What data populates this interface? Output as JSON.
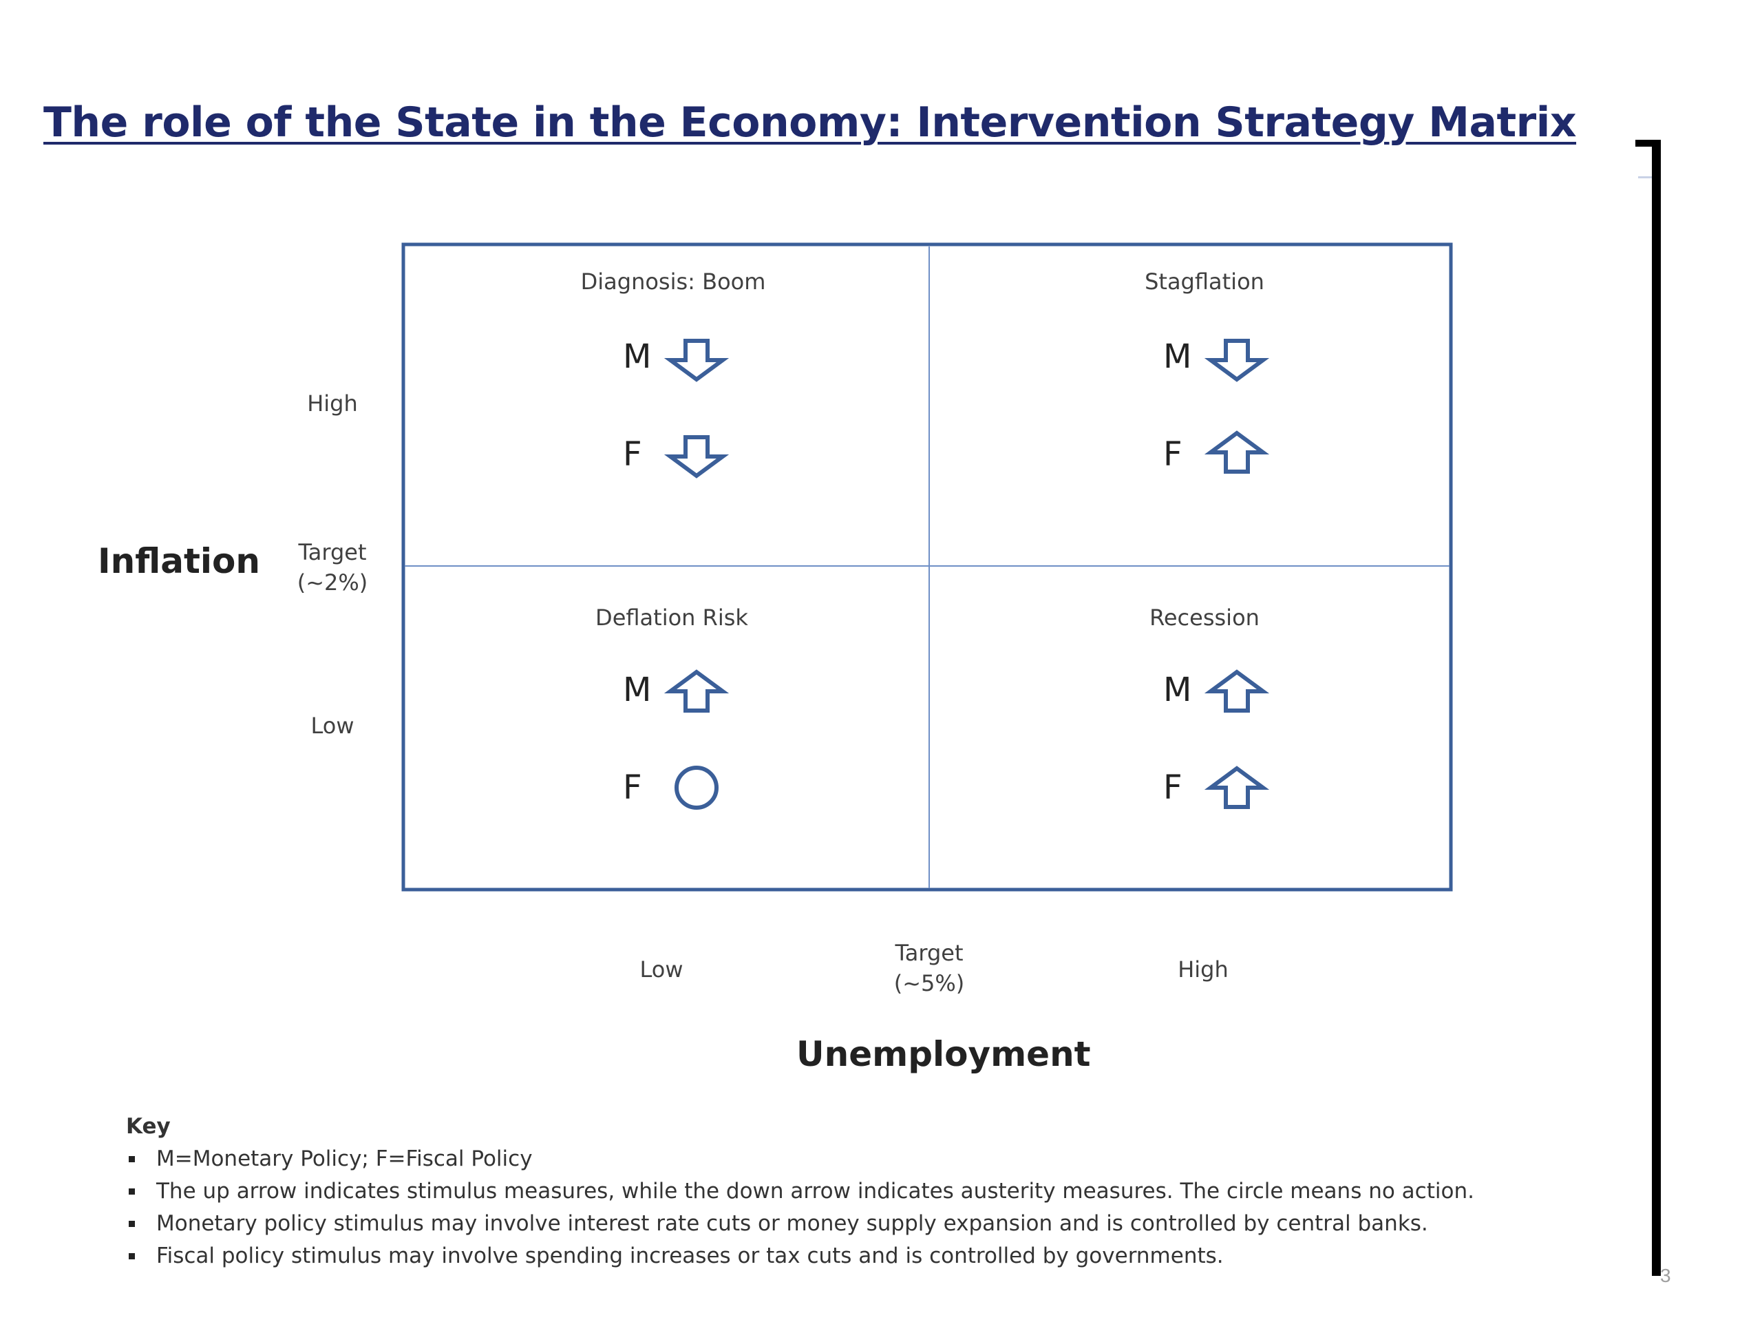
{
  "title": "The role of the State in the Economy: Intervention Strategy Matrix",
  "page_number": "3",
  "y_axis": {
    "label": "Inflation",
    "ticks": {
      "high": "High",
      "target_line1": "Target",
      "target_line2": "(~2%)",
      "low": "Low"
    }
  },
  "x_axis": {
    "label": "Unemployment",
    "ticks": {
      "low": "Low",
      "target_line1": "Target",
      "target_line2": "(~5%)",
      "high": "High"
    }
  },
  "quadrants": {
    "top_left": {
      "title": "Diagnosis: Boom",
      "monetary": "M",
      "fiscal": "F",
      "monetary_symbol": "down-arrow",
      "fiscal_symbol": "down-arrow"
    },
    "top_right": {
      "title": "Stagflation",
      "monetary": "M",
      "fiscal": "F",
      "monetary_symbol": "down-arrow",
      "fiscal_symbol": "up-arrow"
    },
    "bottom_left": {
      "title": "Deflation Risk",
      "monetary": "M",
      "fiscal": "F",
      "monetary_symbol": "up-arrow",
      "fiscal_symbol": "circle"
    },
    "bottom_right": {
      "title": "Recession",
      "monetary": "M",
      "fiscal": "F",
      "monetary_symbol": "up-arrow",
      "fiscal_symbol": "up-arrow"
    }
  },
  "key": {
    "title": "Key",
    "items": [
      "M=Monetary Policy; F=Fiscal Policy",
      "The up arrow indicates stimulus measures, while the down arrow indicates austerity measures.   The circle means no action.",
      "Monetary policy stimulus may involve interest rate cuts or money supply expansion and is controlled by central banks.",
      "Fiscal policy stimulus may involve spending increases or tax cuts and is controlled by governments."
    ]
  },
  "colors": {
    "title": "#1f2a6b",
    "matrix_border": "#3b5f99",
    "arrow_stroke": "#3b5f99"
  }
}
